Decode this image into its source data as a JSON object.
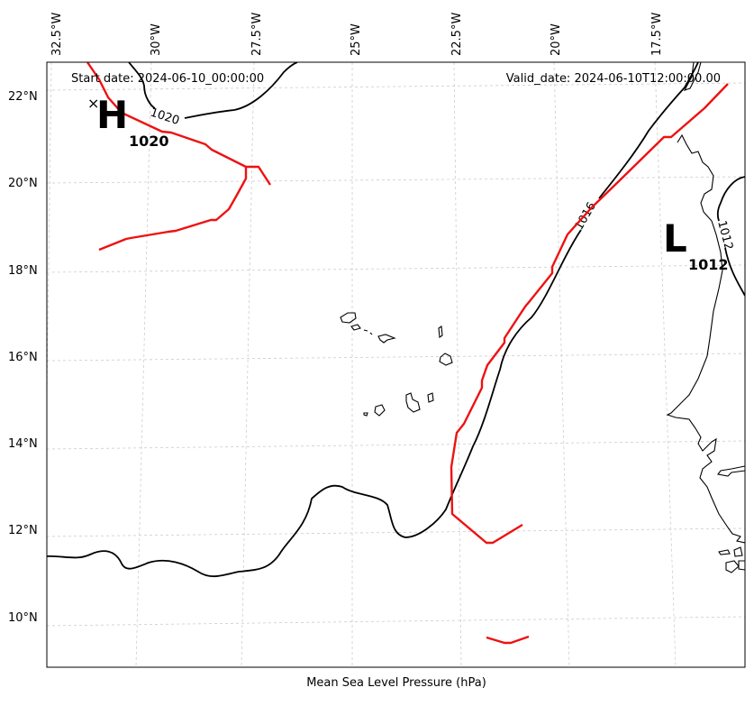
{
  "header": {
    "start_date": "Start date: 2024-06-10_00:00:00",
    "valid_date": "Valid_date: 2024-06-10T12:00:00.00"
  },
  "xlabel": "Mean Sea Level Pressure (hPa)",
  "longitude_labels": [
    "32.5°W",
    "30°W",
    "27.5°W",
    "25°W",
    "22.5°W",
    "20°W",
    "17.5°W"
  ],
  "latitude_labels": [
    "22°N",
    "20°N",
    "18°N",
    "16°N",
    "14°N",
    "12°N",
    "10°N"
  ],
  "pressure_centers": {
    "high": {
      "symbol": "H",
      "value": "1020",
      "marker": "×"
    },
    "low": {
      "symbol": "L",
      "value": "1012"
    }
  },
  "contour_labels": [
    "1020",
    "1016",
    "1012"
  ],
  "colors": {
    "contour": "#000000",
    "front_line": "#ee1111",
    "grid": "#cccccc",
    "coastline": "#000000"
  }
}
